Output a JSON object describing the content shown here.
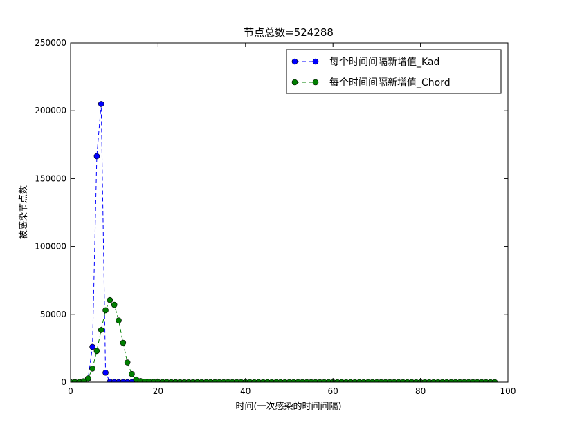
{
  "chart_data": {
    "type": "line",
    "title": "节点总数=524288",
    "xlabel": "时间(一次感染的时间间隔)",
    "ylabel": "被感染节点数",
    "xlim": [
      0,
      100
    ],
    "ylim": [
      0,
      250000
    ],
    "xticks": [
      0,
      20,
      40,
      60,
      80,
      100
    ],
    "yticks": [
      0,
      50000,
      100000,
      150000,
      200000,
      250000
    ],
    "xtick_labels": [
      "0",
      "20",
      "40",
      "60",
      "80",
      "100"
    ],
    "ytick_labels": [
      "0",
      "50000",
      "100000",
      "150000",
      "200000",
      "250000"
    ],
    "grid": false,
    "legend_position": "upper-right",
    "series": [
      {
        "name": "每个时间间隔新增值_Kad",
        "color": "#0000ff",
        "x": [
          0,
          1,
          2,
          3,
          4,
          5,
          6,
          7,
          8,
          9,
          10,
          11,
          12,
          13,
          14
        ],
        "y": [
          1,
          10,
          100,
          600,
          2500,
          26000,
          166500,
          205000,
          7000,
          300,
          100,
          50,
          20,
          10,
          5
        ]
      },
      {
        "name": "每个时间间隔新增值_Chord",
        "color": "#007f00",
        "x": [
          0,
          1,
          2,
          3,
          4,
          5,
          6,
          7,
          8,
          9,
          10,
          11,
          12,
          13,
          14,
          15,
          16,
          17,
          18,
          19,
          20,
          21,
          22,
          23,
          24,
          25,
          26,
          27,
          28,
          29,
          30,
          31,
          32,
          33,
          34,
          35,
          36,
          37,
          38,
          39,
          40,
          41,
          42,
          43,
          44,
          45,
          46,
          47,
          48,
          49,
          50,
          51,
          52,
          53,
          54,
          55,
          56,
          57,
          58,
          59,
          60,
          61,
          62,
          63,
          64,
          65,
          66,
          67,
          68,
          69,
          70,
          71,
          72,
          73,
          74,
          75,
          76,
          77,
          78,
          79,
          80,
          81,
          82,
          83,
          84,
          85,
          86,
          87,
          88,
          89,
          90,
          91,
          92,
          93,
          94,
          95,
          96,
          97
        ],
        "y": [
          1,
          10,
          100,
          700,
          2800,
          10000,
          23000,
          38500,
          53000,
          60500,
          57000,
          45500,
          29000,
          14500,
          6000,
          2000,
          800,
          400,
          250,
          150,
          100,
          80,
          60,
          50,
          40,
          35,
          30,
          25,
          20,
          18,
          15,
          12,
          10,
          8,
          6,
          5,
          4,
          3,
          2,
          2,
          1,
          1,
          1,
          1,
          1,
          1,
          1,
          1,
          1,
          1,
          1,
          1,
          1,
          1,
          1,
          1,
          1,
          1,
          1,
          1,
          1,
          1,
          1,
          1,
          1,
          1,
          1,
          1,
          1,
          1,
          1,
          1,
          1,
          1,
          1,
          1,
          1,
          1,
          1,
          1,
          1,
          1,
          1,
          1,
          1,
          1,
          1,
          1,
          1,
          1,
          1,
          1,
          1,
          1,
          1,
          1,
          1,
          1
        ]
      }
    ]
  }
}
